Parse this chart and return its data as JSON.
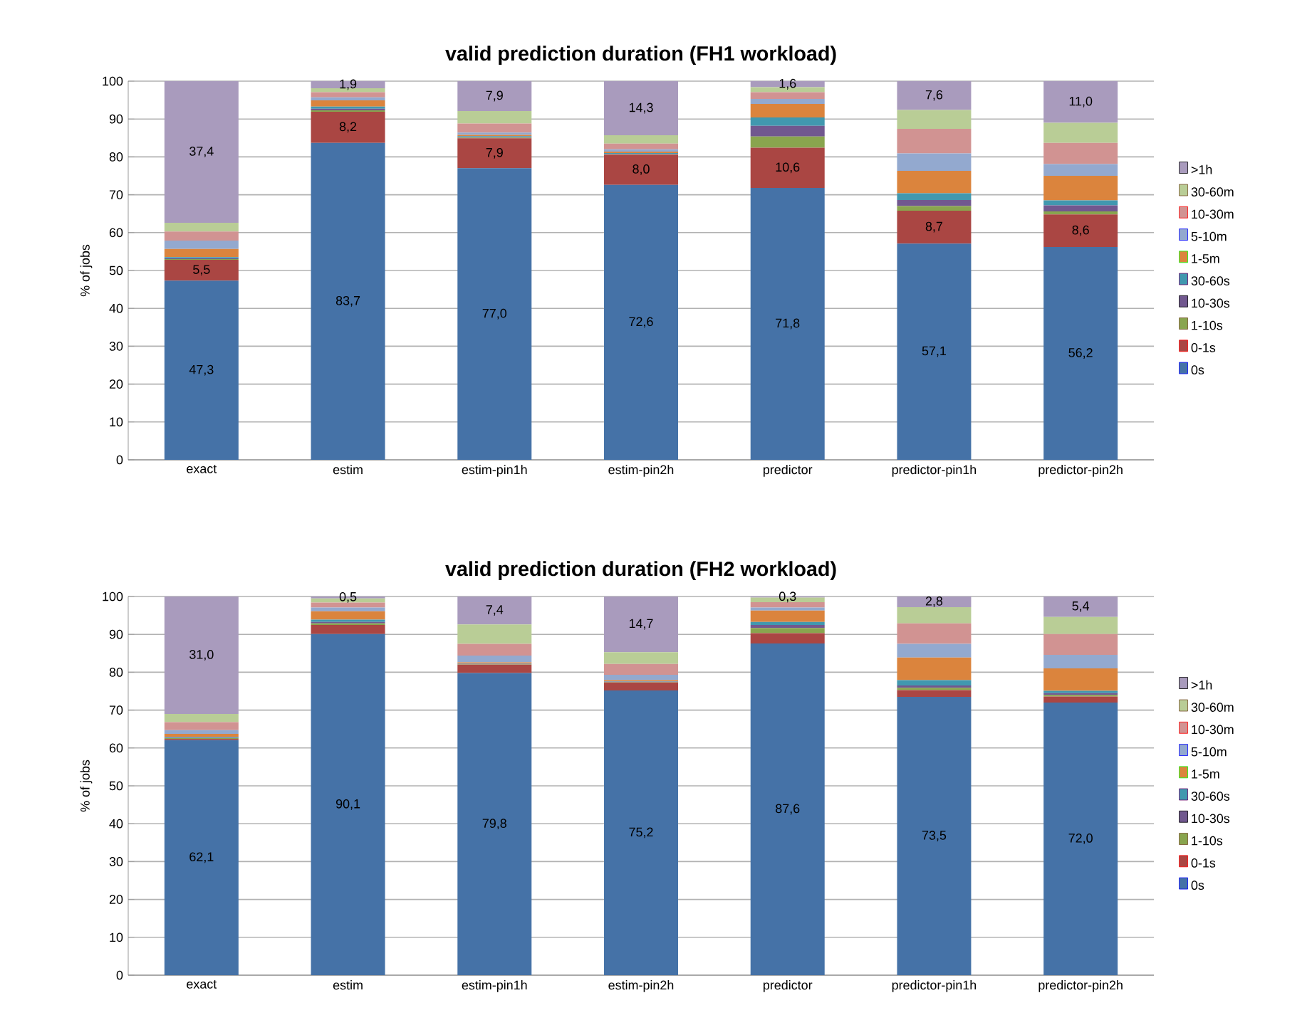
{
  "chart_data": [
    {
      "type": "bar",
      "stacked": true,
      "title": "valid prediction duration (FH1 workload)",
      "ylabel": "% of jobs",
      "categories": [
        "exact",
        "estim",
        "estim-pin1h",
        "estim-pin2h",
        "predictor",
        "predictor-pin1h",
        "predictor-pin2h"
      ],
      "ylim": [
        0,
        100
      ],
      "yticks": [
        0,
        10,
        20,
        30,
        40,
        50,
        60,
        70,
        80,
        90,
        100
      ],
      "grid": "y",
      "legend": "right",
      "series": [
        {
          "name": "0s",
          "color": "#4572a7",
          "values": [
            47.3,
            83.7,
            77.0,
            72.6,
            71.8,
            57.1,
            56.2
          ],
          "value_labels": [
            "47,3",
            "83,7",
            "77,0",
            "72,6",
            "71,8",
            "57,1",
            "56,2"
          ]
        },
        {
          "name": "0-1s",
          "color": "#aa4643",
          "values": [
            5.5,
            8.2,
            7.9,
            8.0,
            10.6,
            8.7,
            8.6
          ],
          "value_labels": [
            "5,5",
            "8,2",
            "7,9",
            "8,0",
            "10,6",
            "8,7",
            "8,6"
          ]
        },
        {
          "name": "1-10s",
          "color": "#89a54e",
          "values": [
            0.2,
            0.4,
            0.2,
            0.1,
            3.0,
            1.2,
            0.8
          ]
        },
        {
          "name": "10-30s",
          "color": "#71588f",
          "values": [
            0.2,
            0.4,
            0.2,
            0.1,
            2.8,
            1.6,
            1.6
          ]
        },
        {
          "name": "30-60s",
          "color": "#4198af",
          "values": [
            0.3,
            0.6,
            0.2,
            0.2,
            2.2,
            1.8,
            1.3
          ]
        },
        {
          "name": "1-5m",
          "color": "#db843d",
          "values": [
            2.2,
            1.6,
            0.3,
            0.4,
            3.6,
            5.9,
            6.5
          ]
        },
        {
          "name": "5-10m",
          "color": "#93a9cf",
          "values": [
            2.2,
            0.8,
            0.6,
            0.6,
            1.3,
            4.6,
            3.1
          ]
        },
        {
          "name": "10-30m",
          "color": "#d19392",
          "values": [
            2.4,
            1.4,
            2.4,
            1.5,
            1.8,
            6.5,
            5.6
          ]
        },
        {
          "name": "30-60m",
          "color": "#b9cd96",
          "values": [
            2.3,
            1.0,
            3.3,
            2.2,
            1.3,
            5.0,
            5.3
          ]
        },
        {
          "name": ">1h",
          "color": "#a99bbd",
          "values": [
            37.4,
            1.9,
            7.9,
            14.3,
            1.6,
            7.6,
            11.0
          ],
          "value_labels": [
            "37,4",
            "1,9",
            "7,9",
            "14,3",
            "1,6",
            "7,6",
            "11,0"
          ]
        }
      ]
    },
    {
      "type": "bar",
      "stacked": true,
      "title": "valid prediction duration (FH2 workload)",
      "ylabel": "% of jobs",
      "categories": [
        "exact",
        "estim",
        "estim-pin1h",
        "estim-pin2h",
        "predictor",
        "predictor-pin1h",
        "predictor-pin2h"
      ],
      "ylim": [
        0,
        100
      ],
      "yticks": [
        0,
        10,
        20,
        30,
        40,
        50,
        60,
        70,
        80,
        90,
        100
      ],
      "grid": "y",
      "legend": "right",
      "series": [
        {
          "name": "0s",
          "color": "#4572a7",
          "values": [
            62.1,
            90.1,
            79.8,
            75.2,
            87.6,
            73.5,
            72.0
          ],
          "value_labels": [
            "62,1",
            "90,1",
            "79,8",
            "75,2",
            "87,6",
            "73,5",
            "72,0"
          ]
        },
        {
          "name": "0-1s",
          "color": "#aa4643",
          "values": [
            0.3,
            2.4,
            2.2,
            2.1,
            2.7,
            1.8,
            1.6
          ]
        },
        {
          "name": "1-10s",
          "color": "#89a54e",
          "values": [
            0.2,
            0.4,
            0.1,
            0.1,
            1.4,
            0.6,
            0.4
          ]
        },
        {
          "name": "10-30s",
          "color": "#71588f",
          "values": [
            0.1,
            0.4,
            0.1,
            0.1,
            0.8,
            0.6,
            0.5
          ]
        },
        {
          "name": "30-60s",
          "color": "#4198af",
          "values": [
            0.2,
            0.6,
            0.1,
            0.1,
            0.8,
            1.4,
            0.6
          ]
        },
        {
          "name": "1-5m",
          "color": "#db843d",
          "values": [
            0.8,
            2.2,
            0.3,
            0.3,
            3.0,
            6.0,
            5.9
          ]
        },
        {
          "name": "5-10m",
          "color": "#93a9cf",
          "values": [
            1.0,
            1.0,
            1.8,
            1.4,
            0.8,
            3.6,
            3.6
          ]
        },
        {
          "name": "10-30m",
          "color": "#d19392",
          "values": [
            2.1,
            1.3,
            3.1,
            2.9,
            1.4,
            5.4,
            5.5
          ]
        },
        {
          "name": "30-60m",
          "color": "#b9cd96",
          "values": [
            2.2,
            1.1,
            5.1,
            3.1,
            1.2,
            4.3,
            4.5
          ]
        },
        {
          "name": ">1h",
          "color": "#a99bbd",
          "values": [
            31.0,
            0.5,
            7.4,
            14.7,
            0.3,
            2.8,
            5.4
          ],
          "value_labels": [
            "31,0",
            "0,5",
            "7,4",
            "14,7",
            "0,3",
            "2,8",
            "5,4"
          ]
        }
      ]
    }
  ]
}
